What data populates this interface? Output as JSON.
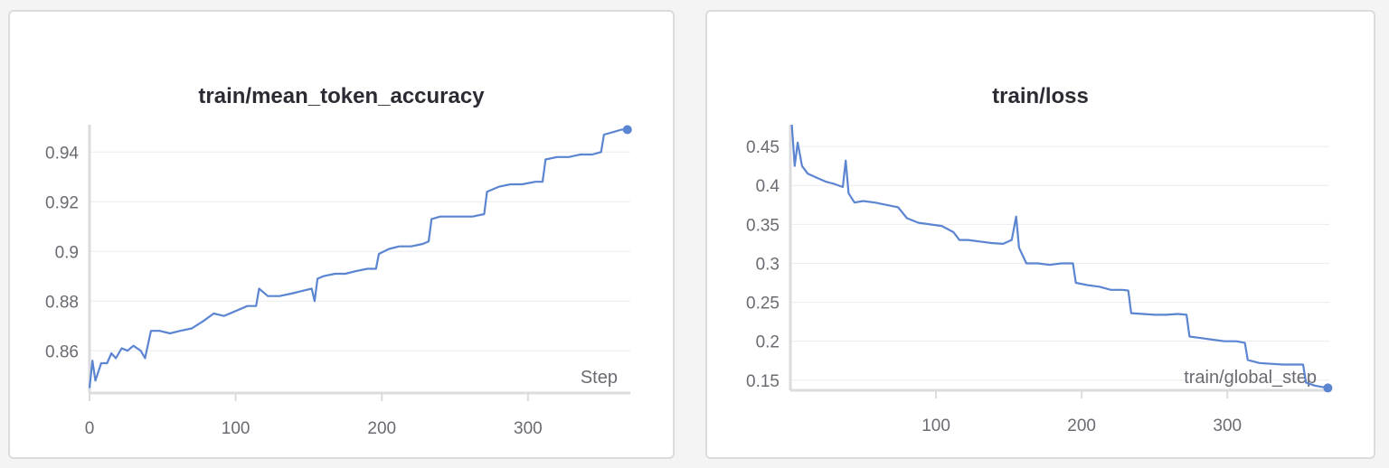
{
  "colors": {
    "series": "#5b84d1",
    "grid": "#ececef",
    "axis": "#dcdcdf",
    "text": "#6a6a72"
  },
  "chart_data": [
    {
      "type": "line",
      "title": "train/mean_token_accuracy",
      "xlabel": "Step",
      "ylabel": "",
      "xlim": [
        0,
        370
      ],
      "ylim": [
        0.843,
        0.951
      ],
      "xticks": [
        0,
        100,
        200,
        300
      ],
      "xtick_labels": [
        "0",
        "100",
        "200",
        "300"
      ],
      "yticks": [
        0.86,
        0.88,
        0.9,
        0.92,
        0.94
      ],
      "ytick_labels": [
        "0.86",
        "0.88",
        "0.9",
        "0.92",
        "0.94"
      ],
      "grid": true,
      "series": [
        {
          "values": [
            [
              0,
              0.845
            ],
            [
              2,
              0.856
            ],
            [
              4,
              0.848
            ],
            [
              8,
              0.855
            ],
            [
              12,
              0.855
            ],
            [
              15,
              0.859
            ],
            [
              18,
              0.857
            ],
            [
              22,
              0.861
            ],
            [
              26,
              0.86
            ],
            [
              30,
              0.862
            ],
            [
              35,
              0.86
            ],
            [
              38,
              0.857
            ],
            [
              42,
              0.868
            ],
            [
              48,
              0.868
            ],
            [
              55,
              0.867
            ],
            [
              62,
              0.868
            ],
            [
              70,
              0.869
            ],
            [
              78,
              0.872
            ],
            [
              85,
              0.875
            ],
            [
              92,
              0.874
            ],
            [
              100,
              0.876
            ],
            [
              108,
              0.878
            ],
            [
              114,
              0.878
            ],
            [
              116,
              0.885
            ],
            [
              122,
              0.882
            ],
            [
              130,
              0.882
            ],
            [
              138,
              0.883
            ],
            [
              145,
              0.884
            ],
            [
              152,
              0.885
            ],
            [
              154,
              0.88
            ],
            [
              156,
              0.889
            ],
            [
              160,
              0.89
            ],
            [
              168,
              0.891
            ],
            [
              175,
              0.891
            ],
            [
              182,
              0.892
            ],
            [
              190,
              0.893
            ],
            [
              196,
              0.893
            ],
            [
              198,
              0.899
            ],
            [
              205,
              0.901
            ],
            [
              212,
              0.902
            ],
            [
              220,
              0.902
            ],
            [
              228,
              0.903
            ],
            [
              232,
              0.904
            ],
            [
              234,
              0.913
            ],
            [
              240,
              0.914
            ],
            [
              248,
              0.914
            ],
            [
              256,
              0.914
            ],
            [
              262,
              0.914
            ],
            [
              270,
              0.915
            ],
            [
              272,
              0.924
            ],
            [
              280,
              0.926
            ],
            [
              288,
              0.927
            ],
            [
              296,
              0.927
            ],
            [
              305,
              0.928
            ],
            [
              310,
              0.928
            ],
            [
              312,
              0.937
            ],
            [
              320,
              0.938
            ],
            [
              328,
              0.938
            ],
            [
              336,
              0.939
            ],
            [
              344,
              0.939
            ],
            [
              350,
              0.94
            ],
            [
              352,
              0.947
            ],
            [
              358,
              0.948
            ],
            [
              364,
              0.949
            ],
            [
              368,
              0.949
            ]
          ]
        }
      ]
    },
    {
      "type": "line",
      "title": "train/loss",
      "xlabel": "train/global_step",
      "ylabel": "",
      "xlim": [
        0,
        370
      ],
      "ylim": [
        0.137,
        0.478
      ],
      "xticks": [
        100,
        200,
        300
      ],
      "xtick_labels": [
        "100",
        "200",
        "300"
      ],
      "yticks": [
        0.15,
        0.2,
        0.25,
        0.3,
        0.35,
        0.4,
        0.45
      ],
      "ytick_labels": [
        "0.15",
        "0.2",
        "0.25",
        "0.3",
        "0.35",
        "0.4",
        "0.45"
      ],
      "grid": true,
      "series": [
        {
          "values": [
            [
              1,
              0.478
            ],
            [
              3,
              0.425
            ],
            [
              5,
              0.455
            ],
            [
              8,
              0.425
            ],
            [
              12,
              0.415
            ],
            [
              18,
              0.41
            ],
            [
              24,
              0.405
            ],
            [
              30,
              0.402
            ],
            [
              36,
              0.398
            ],
            [
              38,
              0.432
            ],
            [
              40,
              0.39
            ],
            [
              44,
              0.378
            ],
            [
              50,
              0.38
            ],
            [
              58,
              0.378
            ],
            [
              66,
              0.375
            ],
            [
              74,
              0.372
            ],
            [
              80,
              0.358
            ],
            [
              88,
              0.352
            ],
            [
              96,
              0.35
            ],
            [
              104,
              0.348
            ],
            [
              112,
              0.34
            ],
            [
              116,
              0.33
            ],
            [
              122,
              0.33
            ],
            [
              130,
              0.328
            ],
            [
              138,
              0.326
            ],
            [
              146,
              0.325
            ],
            [
              152,
              0.33
            ],
            [
              155,
              0.36
            ],
            [
              157,
              0.32
            ],
            [
              162,
              0.3
            ],
            [
              170,
              0.3
            ],
            [
              178,
              0.298
            ],
            [
              186,
              0.3
            ],
            [
              194,
              0.3
            ],
            [
              196,
              0.275
            ],
            [
              204,
              0.272
            ],
            [
              212,
              0.27
            ],
            [
              220,
              0.266
            ],
            [
              228,
              0.266
            ],
            [
              232,
              0.265
            ],
            [
              234,
              0.236
            ],
            [
              242,
              0.235
            ],
            [
              250,
              0.234
            ],
            [
              258,
              0.234
            ],
            [
              266,
              0.235
            ],
            [
              272,
              0.234
            ],
            [
              274,
              0.206
            ],
            [
              282,
              0.204
            ],
            [
              290,
              0.202
            ],
            [
              298,
              0.2
            ],
            [
              306,
              0.2
            ],
            [
              312,
              0.198
            ],
            [
              314,
              0.176
            ],
            [
              322,
              0.172
            ],
            [
              330,
              0.171
            ],
            [
              338,
              0.17
            ],
            [
              346,
              0.17
            ],
            [
              352,
              0.17
            ],
            [
              354,
              0.147
            ],
            [
              360,
              0.143
            ],
            [
              366,
              0.141
            ],
            [
              369,
              0.14
            ]
          ]
        }
      ]
    }
  ]
}
